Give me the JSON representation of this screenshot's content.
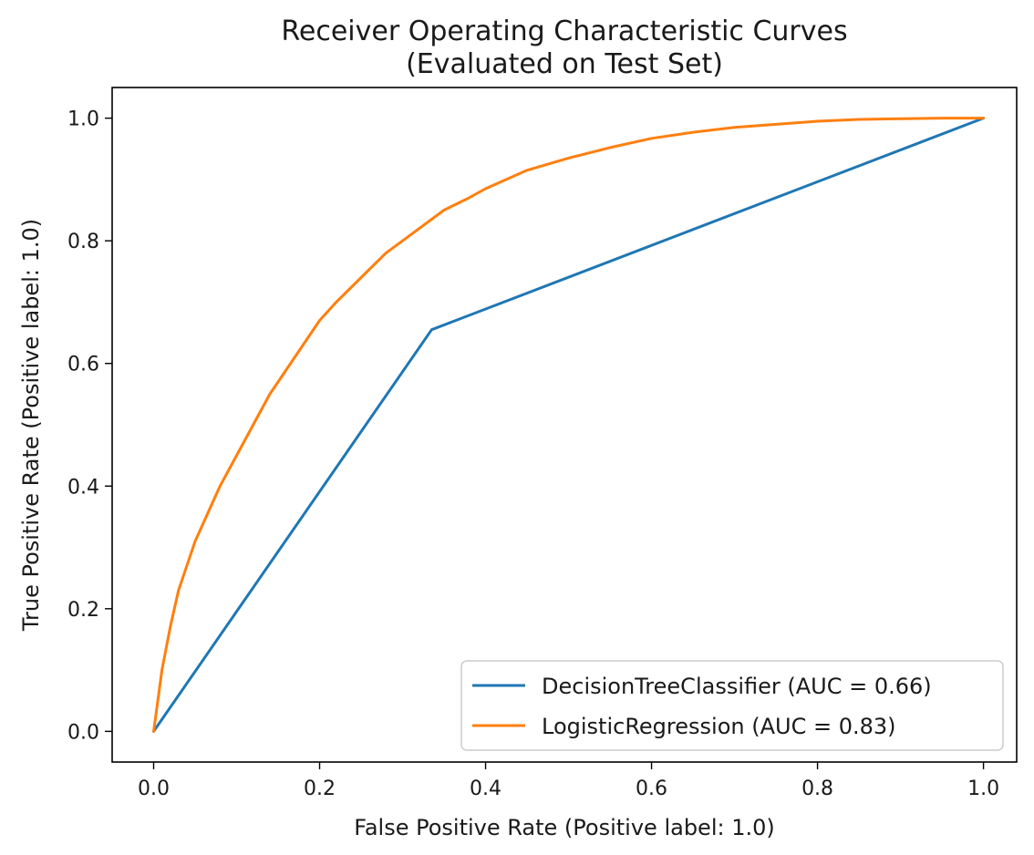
{
  "chart_data": {
    "type": "line",
    "title": "Receiver Operating Characteristic Curves",
    "subtitle": "(Evaluated on Test Set)",
    "xlabel": "False Positive Rate (Positive label: 1.0)",
    "ylabel": "True Positive Rate (Positive label: 1.0)",
    "xlim": [
      -0.05,
      1.04
    ],
    "ylim": [
      -0.05,
      1.05
    ],
    "xticks": [
      0.0,
      0.2,
      0.4,
      0.6,
      0.8,
      1.0
    ],
    "xtick_labels": [
      "0.0",
      "0.2",
      "0.4",
      "0.6",
      "0.8",
      "1.0"
    ],
    "yticks": [
      0.0,
      0.2,
      0.4,
      0.6,
      0.8,
      1.0
    ],
    "ytick_labels": [
      "0.0",
      "0.2",
      "0.4",
      "0.6",
      "0.8",
      "1.0"
    ],
    "grid": false,
    "legend_position": "lower-right",
    "series": [
      {
        "name": "DecisionTreeClassifier (AUC = 0.66)",
        "color": "#1f77b4",
        "x": [
          0.0,
          0.335,
          1.0
        ],
        "y": [
          0.0,
          0.655,
          1.0
        ]
      },
      {
        "name": "LogisticRegression (AUC = 0.83)",
        "color": "#ff7f0e",
        "x": [
          0.0,
          0.005,
          0.01,
          0.02,
          0.03,
          0.04,
          0.05,
          0.06,
          0.08,
          0.1,
          0.12,
          0.14,
          0.16,
          0.18,
          0.2,
          0.22,
          0.25,
          0.28,
          0.3,
          0.32,
          0.35,
          0.38,
          0.4,
          0.45,
          0.5,
          0.55,
          0.6,
          0.65,
          0.7,
          0.75,
          0.8,
          0.85,
          0.9,
          0.95,
          1.0
        ],
        "y": [
          0.0,
          0.05,
          0.1,
          0.17,
          0.23,
          0.27,
          0.31,
          0.34,
          0.4,
          0.45,
          0.5,
          0.55,
          0.59,
          0.63,
          0.67,
          0.7,
          0.74,
          0.78,
          0.8,
          0.82,
          0.85,
          0.87,
          0.885,
          0.915,
          0.935,
          0.952,
          0.967,
          0.977,
          0.985,
          0.99,
          0.995,
          0.998,
          0.999,
          1.0,
          1.0
        ]
      }
    ]
  }
}
